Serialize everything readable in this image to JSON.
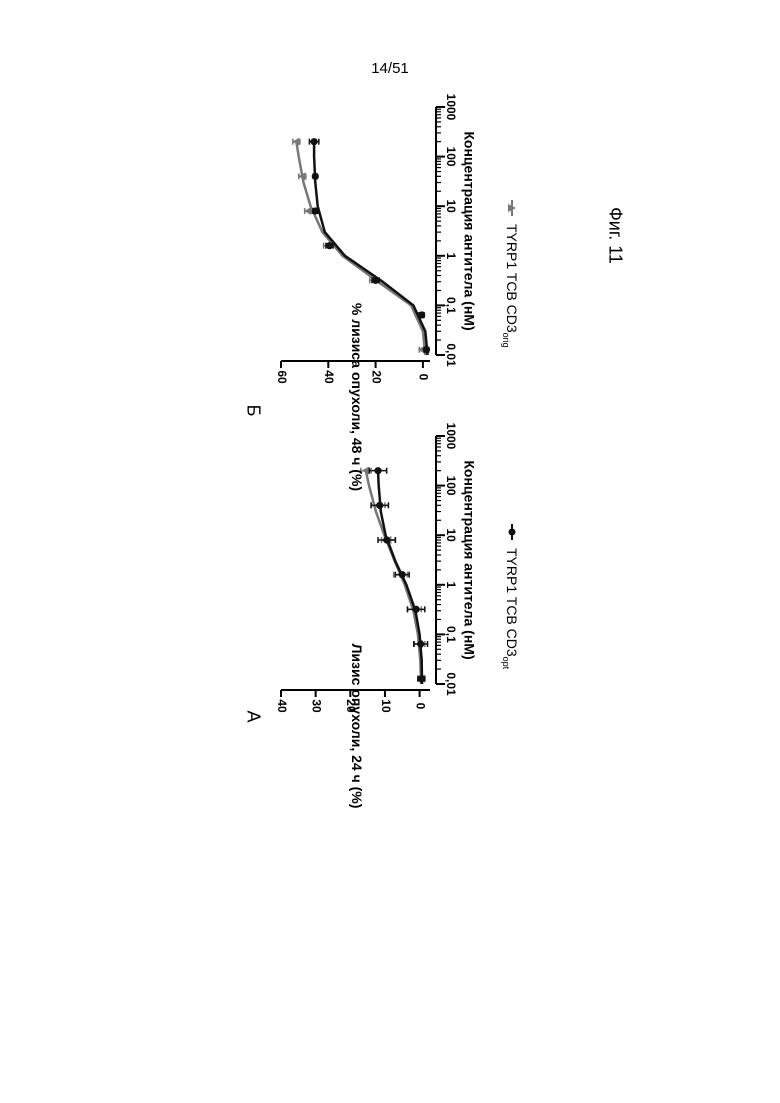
{
  "page_number": "14/51",
  "figure_caption": "Фиг. 11",
  "legend": [
    {
      "label": "TYRP1 TCB CD3",
      "subscript": "opt",
      "color": "#111111",
      "marker": "circle"
    },
    {
      "label": "TYRP1 TCB CD3",
      "subscript": "orig",
      "color": "#777777",
      "marker": "triangle"
    }
  ],
  "chart_data": [
    {
      "panel": "А",
      "type": "scatter",
      "xlabel": "Концентрация антитела (нМ)",
      "ylabel": "Лизис опухоли, 24 ч (%)",
      "xscale": "log",
      "xlim": [
        0.01,
        1000
      ],
      "ylim": [
        -3,
        40
      ],
      "x_ticks": [
        {
          "v": 0.01,
          "t": "0,01"
        },
        {
          "v": 0.1,
          "t": "0,1"
        },
        {
          "v": 1,
          "t": "1"
        },
        {
          "v": 10,
          "t": "10"
        },
        {
          "v": 100,
          "t": "100"
        },
        {
          "v": 1000,
          "t": "1000"
        }
      ],
      "y_ticks": [
        {
          "v": 0,
          "t": "0"
        },
        {
          "v": 10,
          "t": "10"
        },
        {
          "v": 20,
          "t": "20"
        },
        {
          "v": 30,
          "t": "30"
        },
        {
          "v": 40,
          "t": "40"
        }
      ],
      "series": [
        {
          "name": "TYRP1 TCB CD3opt",
          "color": "#111111",
          "marker": "circle",
          "x": [
            0.0128,
            0.064,
            0.32,
            1.6,
            8,
            40,
            200
          ],
          "y": [
            -0.5,
            -0.3,
            1.0,
            5.0,
            9.5,
            11.5,
            12.0
          ],
          "err": [
            1.0,
            2.0,
            2.5,
            2.0,
            2.5,
            2.5,
            2.5
          ],
          "fit": [
            [
              0.01,
              -0.7
            ],
            [
              0.03,
              -0.6
            ],
            [
              0.1,
              0.0
            ],
            [
              0.3,
              1.2
            ],
            [
              1,
              3.8
            ],
            [
              3,
              7.0
            ],
            [
              10,
              9.8
            ],
            [
              30,
              11.2
            ],
            [
              100,
              11.8
            ],
            [
              200,
              12.0
            ]
          ]
        },
        {
          "name": "TYRP1 TCB CD3orig",
          "color": "#777777",
          "marker": "triangle",
          "x": [
            0.0128,
            0.064,
            0.32,
            1.6,
            8,
            40,
            200
          ],
          "y": [
            -0.5,
            0.0,
            1.5,
            5.5,
            9.0,
            12.0,
            15.5
          ],
          "err": [
            1.0,
            1.5,
            2.0,
            2.0,
            2.0,
            2.0,
            1.5
          ],
          "fit": [
            [
              0.01,
              -0.4
            ],
            [
              0.03,
              -0.2
            ],
            [
              0.1,
              0.5
            ],
            [
              0.3,
              1.8
            ],
            [
              1,
              4.3
            ],
            [
              3,
              7.2
            ],
            [
              10,
              10.2
            ],
            [
              30,
              12.6
            ],
            [
              100,
              14.6
            ],
            [
              200,
              15.5
            ]
          ]
        }
      ]
    },
    {
      "panel": "Б",
      "type": "scatter",
      "xlabel": "Концентрация антитела (нМ)",
      "ylabel": "% лизиса опухоли, 48 ч (%)",
      "xscale": "log",
      "xlim": [
        0.01,
        1000
      ],
      "ylim": [
        -3,
        60
      ],
      "x_ticks": [
        {
          "v": 0.01,
          "t": "0,01"
        },
        {
          "v": 0.1,
          "t": "0,1"
        },
        {
          "v": 1,
          "t": "1"
        },
        {
          "v": 10,
          "t": "10"
        },
        {
          "v": 100,
          "t": "100"
        },
        {
          "v": 1000,
          "t": "1000"
        }
      ],
      "y_ticks": [
        {
          "v": 0,
          "t": "0"
        },
        {
          "v": 20,
          "t": "20"
        },
        {
          "v": 40,
          "t": "40"
        },
        {
          "v": 60,
          "t": "60"
        }
      ],
      "series": [
        {
          "name": "TYRP1 TCB CD3opt",
          "color": "#111111",
          "marker": "circle",
          "x": [
            0.0128,
            0.064,
            0.32,
            1.6,
            8,
            40,
            200
          ],
          "y": [
            -1.5,
            0.5,
            20.0,
            39.5,
            45.5,
            45.5,
            46.0
          ],
          "err": [
            1.0,
            1.0,
            1.5,
            1.5,
            1.0,
            0.8,
            2.0
          ],
          "fit": [
            [
              0.01,
              -2.0
            ],
            [
              0.03,
              -1.0
            ],
            [
              0.1,
              4.0
            ],
            [
              0.3,
              17.0
            ],
            [
              1,
              33.0
            ],
            [
              3,
              41.5
            ],
            [
              10,
              44.5
            ],
            [
              30,
              45.5
            ],
            [
              100,
              46.0
            ],
            [
              200,
              46.0
            ]
          ]
        },
        {
          "name": "TYRP1 TCB CD3orig",
          "color": "#777777",
          "marker": "triangle",
          "x": [
            0.0128,
            0.064,
            0.32,
            1.6,
            8,
            40,
            200
          ],
          "y": [
            0.5,
            1.0,
            21.0,
            40.5,
            48.5,
            51.0,
            53.5
          ],
          "err": [
            1.0,
            1.0,
            1.5,
            1.5,
            1.5,
            1.5,
            1.5
          ],
          "fit": [
            [
              0.01,
              -1.0
            ],
            [
              0.03,
              0.0
            ],
            [
              0.1,
              5.0
            ],
            [
              0.3,
              19.0
            ],
            [
              1,
              34.0
            ],
            [
              3,
              42.5
            ],
            [
              10,
              47.5
            ],
            [
              30,
              50.5
            ],
            [
              100,
              52.5
            ],
            [
              200,
              53.5
            ]
          ]
        }
      ]
    }
  ]
}
